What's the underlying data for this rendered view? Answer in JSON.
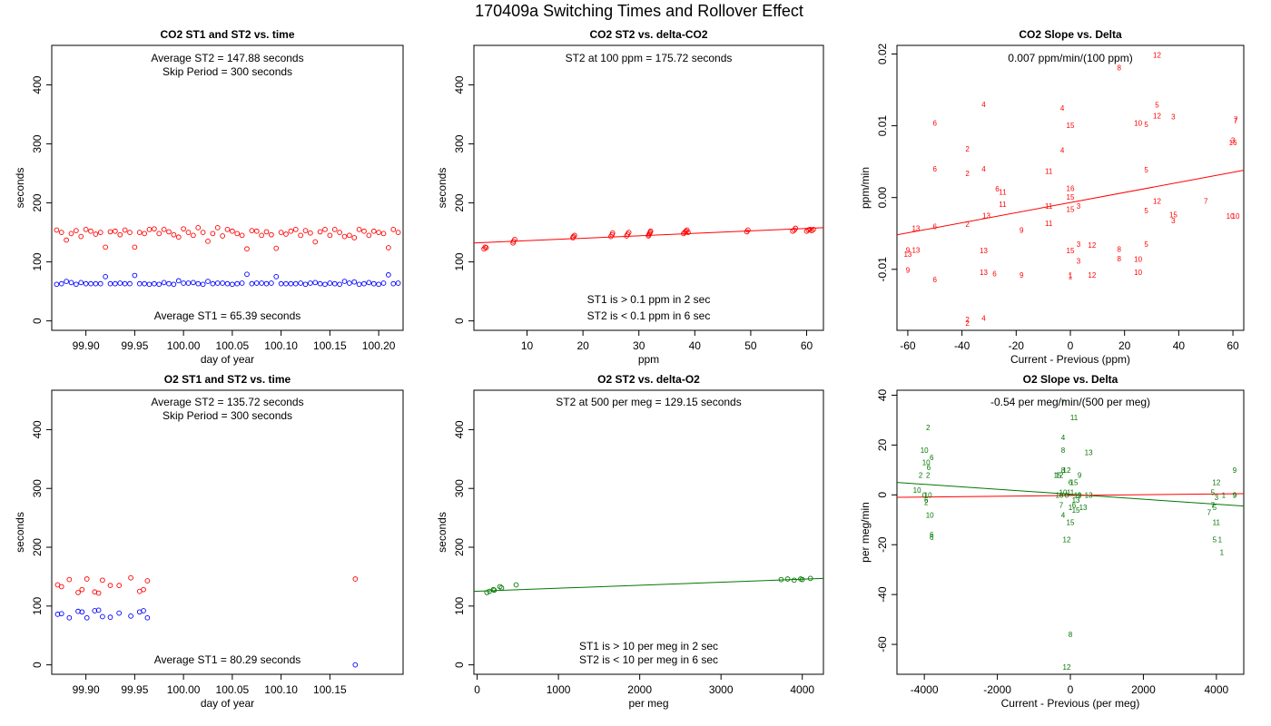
{
  "figure_title": "170409a   Switching Times and Rollover Effect",
  "colors": {
    "st2": "#ff0000",
    "st1": "#0000ff",
    "o2": "#007700",
    "fit_red": "#ff0000",
    "fit_green": "#007700"
  },
  "chart_data": [
    {
      "id": "co2-time",
      "type": "scatter",
      "title": "CO2 ST1 and ST2 vs. time",
      "xlabel": "day of year",
      "ylabel": "seconds",
      "xlim": [
        99.865,
        100.225
      ],
      "ylim": [
        -16,
        467
      ],
      "xticks": [
        "99.90",
        "99.95",
        "100.00",
        "100.05",
        "100.10",
        "100.15",
        "100.20"
      ],
      "yticks": [
        "0",
        "100",
        "200",
        "300",
        "400"
      ],
      "annotations": [
        "Average ST2 =  147.88  seconds",
        "Skip Period =  300  seconds",
        "Average ST1 =  65.39  seconds"
      ],
      "series": [
        {
          "key": "st2",
          "x": [
            99.87,
            99.875,
            99.88,
            99.885,
            99.89,
            99.895,
            99.9,
            99.905,
            99.91,
            99.915,
            99.92,
            99.925,
            99.93,
            99.935,
            99.94,
            99.945,
            99.95,
            99.955,
            99.96,
            99.965,
            99.97,
            99.975,
            99.98,
            99.985,
            99.99,
            99.995,
            100.0,
            100.005,
            100.01,
            100.015,
            100.02,
            100.025,
            100.03,
            100.035,
            100.04,
            100.045,
            100.05,
            100.055,
            100.06,
            100.065,
            100.07,
            100.075,
            100.08,
            100.085,
            100.09,
            100.095,
            100.1,
            100.105,
            100.11,
            100.115,
            100.12,
            100.125,
            100.13,
            100.135,
            100.14,
            100.145,
            100.15,
            100.155,
            100.16,
            100.165,
            100.17,
            100.175,
            100.18,
            100.185,
            100.19,
            100.195,
            100.2,
            100.205,
            100.21,
            100.215,
            100.22
          ],
          "y": [
            154,
            150,
            137,
            148,
            153,
            143,
            155,
            152,
            147,
            150,
            125,
            151,
            152,
            146,
            154,
            150,
            125,
            150,
            148,
            155,
            156,
            148,
            155,
            151,
            146,
            142,
            156,
            150,
            145,
            158,
            150,
            135,
            148,
            158,
            144,
            155,
            152,
            148,
            145,
            122,
            153,
            152,
            145,
            151,
            146,
            123,
            150,
            147,
            152,
            155,
            145,
            153,
            149,
            134,
            151,
            155,
            145,
            155,
            150,
            143,
            145,
            141,
            155,
            152,
            145,
            152,
            150,
            148,
            124,
            155,
            150
          ]
        },
        {
          "key": "st1",
          "x": [
            99.87,
            99.875,
            99.88,
            99.885,
            99.89,
            99.895,
            99.9,
            99.905,
            99.91,
            99.915,
            99.92,
            99.925,
            99.93,
            99.935,
            99.94,
            99.945,
            99.95,
            99.955,
            99.96,
            99.965,
            99.97,
            99.975,
            99.98,
            99.985,
            99.99,
            99.995,
            100.0,
            100.005,
            100.01,
            100.015,
            100.02,
            100.025,
            100.03,
            100.035,
            100.04,
            100.045,
            100.05,
            100.055,
            100.06,
            100.065,
            100.07,
            100.075,
            100.08,
            100.085,
            100.09,
            100.095,
            100.1,
            100.105,
            100.11,
            100.115,
            100.12,
            100.125,
            100.13,
            100.135,
            100.14,
            100.145,
            100.15,
            100.155,
            100.16,
            100.165,
            100.17,
            100.175,
            100.18,
            100.185,
            100.19,
            100.195,
            100.2,
            100.205,
            100.21,
            100.215,
            100.22
          ],
          "y": [
            62,
            63,
            67,
            65,
            62,
            65,
            63,
            63,
            63,
            63,
            75,
            63,
            63,
            64,
            63,
            63,
            77,
            63,
            63,
            62,
            63,
            62,
            65,
            63,
            62,
            68,
            64,
            64,
            65,
            63,
            62,
            67,
            63,
            64,
            64,
            63,
            62,
            63,
            64,
            79,
            63,
            64,
            64,
            63,
            64,
            75,
            63,
            63,
            63,
            63,
            64,
            62,
            64,
            65,
            63,
            62,
            64,
            63,
            62,
            67,
            64,
            66,
            62,
            63,
            65,
            63,
            62,
            64,
            78,
            63,
            64
          ]
        }
      ]
    },
    {
      "id": "co2-delta",
      "type": "scatter",
      "title": "CO2 ST2 vs. delta-CO2",
      "xlabel": "ppm",
      "ylabel": "seconds",
      "xlim": [
        0.5,
        63
      ],
      "ylim": [
        -16,
        467
      ],
      "xticks": [
        "10",
        "20",
        "30",
        "40",
        "50",
        "60"
      ],
      "xtick_values": [
        10,
        20,
        30,
        40,
        50,
        60
      ],
      "yticks": [
        "0",
        "100",
        "200",
        "300",
        "400"
      ],
      "annotations": [
        "ST2 at 100 ppm =  175.72  seconds",
        "ST1 is > 0.1 ppm in 2 sec",
        "ST2 is < 0.1 ppm in 6 sec"
      ],
      "fit": {
        "x": [
          0.5,
          63
        ],
        "y": [
          132,
          158
        ]
      },
      "series": [
        {
          "key": "st2",
          "x": [
            2.3,
            2.5,
            2.7,
            7.5,
            7.6,
            7.8,
            18.2,
            18.3,
            18.5,
            25.0,
            25.2,
            25.3,
            27.8,
            28.0,
            28.2,
            31.7,
            31.8,
            31.9,
            32.0,
            32.1,
            38.0,
            38.2,
            38.4,
            38.6,
            38.8,
            49.3,
            49.5,
            57.5,
            57.8,
            58.0,
            60.0,
            60.3,
            60.6,
            60.9,
            61.2
          ],
          "y": [
            122,
            125,
            124,
            132,
            135,
            138,
            141,
            143,
            145,
            143,
            146,
            149,
            144,
            147,
            150,
            144,
            146,
            148,
            150,
            152,
            148,
            150,
            152,
            154,
            150,
            151,
            154,
            152,
            154,
            157,
            152,
            154,
            155,
            153,
            155
          ]
        }
      ]
    },
    {
      "id": "co2-slope",
      "type": "scatter",
      "title": "CO2 Slope vs. Delta",
      "xlabel": "Current - Previous (ppm)",
      "ylabel": "ppm/min",
      "xlim": [
        -64,
        64
      ],
      "ylim": [
        -0.0185,
        0.0212
      ],
      "xticks": [
        "-60",
        "-40",
        "-20",
        "0",
        "20",
        "40",
        "60"
      ],
      "xtick_values": [
        -60,
        -40,
        -20,
        0,
        20,
        40,
        60
      ],
      "yticks": [
        "-0.01",
        "0.00",
        "0.01",
        "0.02"
      ],
      "ytick_values": [
        -0.01,
        0,
        0.01,
        0.02
      ],
      "annotations": [
        "0.007  ppm/min/(100 ppm)"
      ],
      "fit": {
        "x": [
          -64,
          64
        ],
        "y": [
          -0.0052,
          0.0038
        ]
      },
      "labels": [
        "12",
        "8",
        "4",
        "5",
        "4",
        "12",
        "3",
        "15",
        "10",
        "5",
        "7",
        "6",
        "16",
        "6",
        "4",
        "2",
        "3",
        "4",
        "11",
        "5",
        "2",
        "6",
        "11",
        "16",
        "11",
        "12",
        "3",
        "13",
        "6",
        "13",
        "11",
        "5",
        "3",
        "15",
        "9",
        "2",
        "11",
        "1",
        "13",
        "15",
        "9",
        "13",
        "13",
        "3",
        "12",
        "8",
        "10",
        "5",
        "15",
        "8",
        "13",
        "9",
        "6",
        "9",
        "1",
        "12",
        "10",
        "6",
        "2",
        "4",
        "2",
        "7",
        "15",
        "10",
        "3",
        "7",
        "10"
      ],
      "x": [
        32,
        18,
        -32,
        32,
        -3,
        32,
        38,
        0,
        25,
        28,
        61,
        -50,
        60,
        -27,
        -3,
        -38,
        60,
        -32,
        -8,
        28,
        -38,
        -50,
        -25,
        0,
        -25,
        32,
        3,
        -57,
        -50,
        -57,
        -8,
        28,
        3,
        0,
        -18,
        -38,
        -8,
        0,
        -32,
        0,
        -60,
        -60,
        -31,
        3,
        8,
        18,
        25,
        28,
        0,
        18,
        -32,
        -60,
        -28,
        -18,
        0,
        8,
        25,
        -50,
        -38,
        -32,
        -38,
        61,
        38,
        61,
        38,
        50,
        59
      ],
      "y": [
        0.0199,
        0.0181,
        0.013,
        0.0129,
        0.0125,
        0.0114,
        0.0113,
        0.0101,
        0.0104,
        0.0102,
        0.0107,
        0.0104,
        0.0077,
        0.0012,
        0.0066,
        0.0068,
        0.008,
        0.004,
        0.0037,
        0.0039,
        0.0034,
        0.004,
        0.0008,
        0.0013,
        -0.0009,
        -0.0005,
        -0.0012,
        -0.0043,
        -0.004,
        -0.0073,
        -0.0012,
        -0.0018,
        -0.0065,
        -0.0074,
        -0.0045,
        -0.0037,
        -0.0036,
        -0.011,
        -0.0074,
        -0.0016,
        -0.0073,
        -0.0079,
        -0.0025,
        -0.0088,
        -0.0066,
        -0.0072,
        -0.0104,
        -0.0065,
        0.0001,
        -0.0085,
        -0.0104,
        -0.0101,
        -0.0106,
        -0.0108,
        -0.0108,
        -0.0108,
        -0.0086,
        -0.0114,
        -0.017,
        -0.0168,
        -0.0175,
        0.0109,
        -0.0024,
        -0.0026,
        -0.0032,
        -0.0005,
        -0.0026
      ]
    },
    {
      "id": "o2-time",
      "type": "scatter",
      "title": "O2 ST1 and ST2 vs. time",
      "xlabel": "day of year",
      "ylabel": "seconds",
      "xlim": [
        99.865,
        100.225
      ],
      "ylim": [
        -16,
        467
      ],
      "xticks": [
        "99.90",
        "99.95",
        "100.00",
        "100.05",
        "100.10",
        "100.15"
      ],
      "yticks": [
        "0",
        "100",
        "200",
        "300",
        "400"
      ],
      "annotations": [
        "Average ST2 =  135.72  seconds",
        "Skip Period =  300  seconds",
        "Average ST1 =  80.29  seconds"
      ],
      "series": [
        {
          "key": "st2",
          "x": [
            99.871,
            99.875,
            99.883,
            99.892,
            99.896,
            99.901,
            99.909,
            99.913,
            99.917,
            99.925,
            99.934,
            99.946,
            99.955,
            99.959,
            99.963,
            100.176
          ],
          "y": [
            136,
            133,
            145,
            123,
            128,
            146,
            124,
            122,
            144,
            135,
            135,
            148,
            125,
            128,
            143,
            146
          ]
        },
        {
          "key": "st1",
          "x": [
            99.871,
            99.875,
            99.883,
            99.892,
            99.896,
            99.901,
            99.909,
            99.913,
            99.917,
            99.925,
            99.934,
            99.946,
            99.955,
            99.959,
            99.963,
            100.176
          ],
          "y": [
            86,
            87,
            80,
            91,
            90,
            80,
            92,
            93,
            82,
            81,
            88,
            83,
            90,
            92,
            80,
            0
          ]
        }
      ]
    },
    {
      "id": "o2-delta",
      "type": "scatter",
      "title": "O2 ST2 vs. delta-O2",
      "xlabel": "per meg",
      "ylabel": "seconds",
      "xlim": [
        -40,
        4260
      ],
      "ylim": [
        -16,
        467
      ],
      "xticks": [
        "0",
        "1000",
        "2000",
        "3000",
        "4000"
      ],
      "xtick_values": [
        0,
        1000,
        2000,
        3000,
        4000
      ],
      "yticks": [
        "0",
        "100",
        "200",
        "300",
        "400"
      ],
      "annotations": [
        "ST2 at 500 per meg =  129.15  seconds",
        "ST1 is > 10 per meg in 2 sec",
        "ST2 is < 10 per meg in 6 sec"
      ],
      "fit": {
        "x": [
          -40,
          4260
        ],
        "y": [
          125,
          147
        ]
      },
      "series": [
        {
          "key": "o2",
          "x": [
            120,
            150,
            200,
            210,
            280,
            300,
            480,
            3740,
            3820,
            3900,
            3980,
            4000,
            4100
          ],
          "y": [
            123,
            125,
            128,
            127,
            133,
            131,
            136,
            145,
            146,
            144,
            146,
            145,
            147
          ]
        }
      ]
    },
    {
      "id": "o2-slope",
      "type": "scatter",
      "title": "O2 Slope vs. Delta",
      "xlabel": "Current - Previous (per meg)",
      "ylabel": "per meg/min",
      "xlim": [
        -4750,
        4750
      ],
      "ylim": [
        -72,
        42
      ],
      "xticks": [
        "-4000",
        "-2000",
        "0",
        "2000",
        "4000"
      ],
      "xtick_values": [
        -4000,
        -2000,
        0,
        2000,
        4000
      ],
      "yticks": [
        "-60",
        "-40",
        "-20",
        "0",
        "20",
        "40"
      ],
      "ytick_values": [
        -60,
        -40,
        -20,
        0,
        20,
        40
      ],
      "annotations": [
        "-0.54  per meg/min/(500 per meg)"
      ],
      "fit_red": {
        "x": [
          -4750,
          4750
        ],
        "y": [
          -1.0,
          0.5
        ]
      },
      "fit_green": {
        "x": [
          -4750,
          4750
        ],
        "y": [
          5,
          -4.5
        ]
      },
      "labels": [
        "2",
        "10",
        "6",
        "10",
        "6",
        "2",
        "2",
        "10",
        "0",
        "10",
        "2",
        "6",
        "6",
        "10",
        "6",
        "7",
        "11",
        "4",
        "8",
        "13",
        "12",
        "8",
        "15",
        "12",
        "9",
        "6",
        "15",
        "10",
        "11",
        "0",
        "9",
        "13",
        "10",
        "13",
        "15",
        "7",
        "1",
        "6",
        "13",
        "4",
        "15",
        "12",
        "8",
        "12",
        "11",
        "9",
        "12",
        "9",
        "5",
        "3",
        "9",
        "1",
        "7",
        "5",
        "7",
        "11",
        "5",
        "1",
        "1"
      ],
      "x": [
        -3900,
        -4000,
        -3800,
        -3950,
        -3880,
        -4100,
        -3900,
        -4200,
        -4000,
        -3900,
        -3950,
        -3950,
        -3800,
        -3850,
        -3800,
        -200,
        100,
        -200,
        -200,
        500,
        -100,
        -200,
        -350,
        -300,
        250,
        0,
        100,
        -200,
        0,
        -100,
        250,
        500,
        -300,
        150,
        150,
        -250,
        0,
        100,
        350,
        -200,
        0,
        -100,
        0,
        -100,
        200,
        4500,
        4000,
        4500,
        3900,
        4000,
        4500,
        4200,
        3800,
        3950,
        3900,
        4000,
        3950,
        4100,
        4150
      ],
      "y": [
        27,
        18,
        15,
        13,
        11,
        8,
        8,
        2,
        0,
        0,
        -3,
        -2,
        -16,
        -8,
        -17,
        37,
        31,
        23,
        18,
        17,
        10,
        10,
        8,
        8,
        8,
        5,
        5,
        1,
        1,
        0,
        0,
        0,
        0,
        -2,
        -6,
        -4,
        -5,
        -4,
        -5,
        -8,
        -11,
        -18,
        -56,
        -69,
        0,
        10,
        5,
        0,
        1,
        -1,
        0,
        0,
        -7,
        -5,
        -4,
        -11,
        -18,
        -18,
        -23
      ]
    }
  ]
}
